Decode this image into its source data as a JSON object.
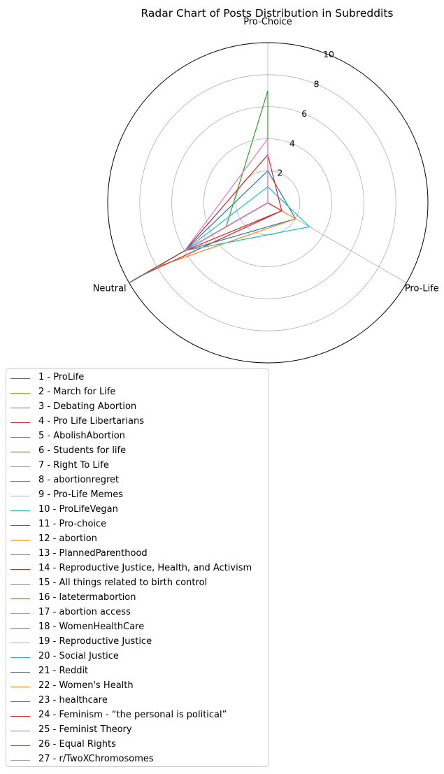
{
  "chart_data": {
    "type": "radar",
    "title": "Radar Chart of Posts Distribution in Subreddits",
    "axes": [
      "Pro-Choice",
      "Pro-Life",
      "Neutral"
    ],
    "rlim": [
      0,
      10
    ],
    "rticks": [
      "2",
      "4",
      "6",
      "8",
      "10"
    ],
    "grid": true,
    "legend_position": "below-left",
    "colors": [
      "#1f77b4",
      "#ff7f0e",
      "#2ca02c",
      "#d62728",
      "#9467bd",
      "#8c564b",
      "#e377c2",
      "#7f7f7f",
      "#bcbd22",
      "#17becf"
    ],
    "series": [
      {
        "name": "1 - ProLife",
        "values": [
          2,
          2,
          6
        ]
      },
      {
        "name": "2 - March for Life",
        "values": [
          0,
          2,
          8
        ]
      },
      {
        "name": "3 - Debating Abortion",
        "values": [
          7,
          0,
          3
        ]
      },
      {
        "name": "4 - Pro Life Libertarians",
        "values": [
          0,
          1,
          9
        ]
      },
      {
        "name": "5 - AbolishAbortion",
        "values": [
          0,
          0,
          10
        ]
      },
      {
        "name": "6 - Students for life",
        "values": [
          0,
          0,
          10
        ]
      },
      {
        "name": "7 - Right To Life",
        "values": [
          0,
          0,
          10
        ]
      },
      {
        "name": "8 - abortionregret",
        "values": [
          0,
          0,
          10
        ]
      },
      {
        "name": "9 - Pro-Life Memes",
        "values": [
          0,
          0,
          10
        ]
      },
      {
        "name": "10 - ProLifeVegan",
        "values": [
          1,
          3,
          6
        ]
      },
      {
        "name": "11 - Pro-choice",
        "values": [
          0,
          0,
          10
        ]
      },
      {
        "name": "12 - abortion",
        "values": [
          0,
          0,
          10
        ]
      },
      {
        "name": "13 - PlannedParenthood",
        "values": [
          0,
          0,
          10
        ]
      },
      {
        "name": "14 - Reproductive Justice, Health, and Activism",
        "values": [
          0,
          0,
          10
        ]
      },
      {
        "name": "15 - All things related to birth control",
        "values": [
          0,
          0,
          10
        ]
      },
      {
        "name": "16 - latetermabortion",
        "values": [
          0,
          0,
          10
        ]
      },
      {
        "name": "17 - abortion access",
        "values": [
          0,
          0,
          10
        ]
      },
      {
        "name": "18 - WomenHealthCare",
        "values": [
          0,
          0,
          10
        ]
      },
      {
        "name": "19 - Reproductive Justice",
        "values": [
          0,
          0,
          10
        ]
      },
      {
        "name": "20 - Social Justice",
        "values": [
          0,
          0,
          10
        ]
      },
      {
        "name": "21 - Reddit",
        "values": [
          0,
          0,
          10
        ]
      },
      {
        "name": "22 - Women's Health",
        "values": [
          0,
          0,
          10
        ]
      },
      {
        "name": "23 - healthcare",
        "values": [
          0,
          0,
          10
        ]
      },
      {
        "name": "24 - Feminism - “the personal is political”",
        "values": [
          3,
          1,
          6
        ]
      },
      {
        "name": "25 - Feminist Theory",
        "values": [
          0,
          0,
          10
        ]
      },
      {
        "name": "26 - Equal Rights",
        "values": [
          0,
          0,
          10
        ]
      },
      {
        "name": "27 - r/TwoXChromosomes",
        "values": [
          4,
          0,
          6
        ]
      }
    ]
  }
}
